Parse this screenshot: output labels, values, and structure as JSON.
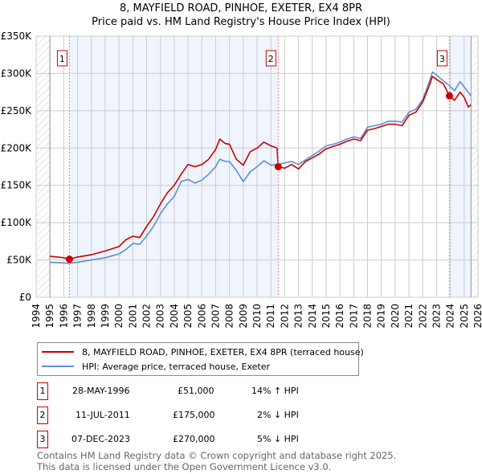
{
  "chart_data": {
    "type": "line",
    "title": "8, MAYFIELD ROAD, PINHOE, EXETER, EX4 8PR",
    "subtitle": "Price paid vs. HM Land Registry's House Price Index (HPI)",
    "xlim": [
      1994,
      2026
    ],
    "ylim": [
      0,
      350000
    ],
    "y_ticks": [
      {
        "v": 0,
        "label": "£0"
      },
      {
        "v": 50000,
        "label": "£50K"
      },
      {
        "v": 100000,
        "label": "£100K"
      },
      {
        "v": 150000,
        "label": "£150K"
      },
      {
        "v": 200000,
        "label": "£200K"
      },
      {
        "v": 250000,
        "label": "£250K"
      },
      {
        "v": 300000,
        "label": "£300K"
      },
      {
        "v": 350000,
        "label": "£350K"
      }
    ],
    "x_ticks": [
      "1994",
      "1995",
      "1996",
      "1997",
      "1998",
      "1999",
      "2000",
      "2001",
      "2002",
      "2003",
      "2004",
      "2005",
      "2006",
      "2007",
      "2008",
      "2009",
      "2010",
      "2011",
      "2012",
      "2013",
      "2014",
      "2015",
      "2016",
      "2017",
      "2018",
      "2019",
      "2020",
      "2021",
      "2022",
      "2023",
      "2024",
      "2025",
      "2026"
    ],
    "grid": true,
    "series": [
      {
        "name": "8, MAYFIELD ROAD, PINHOE, EXETER, EX4 8PR (terraced house)",
        "color": "#cc0000",
        "x": [
          1995,
          1996,
          1996.41,
          1997,
          1998,
          1999,
          2000,
          2000.5,
          2001,
          2001.5,
          2002,
          2002.5,
          2003,
          2003.5,
          2004,
          2004.5,
          2005,
          2005.5,
          2006,
          2006.5,
          2007,
          2007.3,
          2007.7,
          2008,
          2008.5,
          2009,
          2009.5,
          2010,
          2010.5,
          2011,
          2011.45,
          2011.53,
          2012,
          2012.5,
          2013,
          2013.5,
          2014,
          2014.5,
          2015,
          2015.5,
          2016,
          2016.5,
          2017,
          2017.5,
          2018,
          2018.5,
          2019,
          2019.5,
          2020,
          2020.5,
          2021,
          2021.5,
          2022,
          2022.5,
          2022.7,
          2023,
          2023.5,
          2023.93,
          2024.3,
          2024.7,
          2025,
          2025.3,
          2025.5
        ],
        "y": [
          55000,
          53000,
          51000,
          54000,
          57000,
          62000,
          68000,
          77000,
          82000,
          80000,
          95000,
          108000,
          125000,
          140000,
          150000,
          165000,
          178000,
          175000,
          178000,
          185000,
          198000,
          212000,
          206000,
          205000,
          185000,
          177000,
          195000,
          200000,
          208000,
          203000,
          200000,
          175000,
          173000,
          178000,
          172000,
          182000,
          187000,
          192000,
          199000,
          202000,
          205000,
          209000,
          212000,
          210000,
          224000,
          226000,
          229000,
          232000,
          232000,
          230000,
          244000,
          248000,
          262000,
          285000,
          296000,
          292000,
          286000,
          270000,
          264000,
          275000,
          268000,
          255000,
          258000
        ]
      },
      {
        "name": "HPI: Average price, terraced house, Exeter",
        "color": "#5b8fd6",
        "x": [
          1995,
          1996,
          1996.4,
          1997,
          1998,
          1999,
          2000,
          2000.5,
          2001,
          2001.5,
          2002,
          2002.5,
          2003,
          2003.5,
          2004,
          2004.5,
          2005,
          2005.5,
          2006,
          2006.5,
          2007,
          2007.3,
          2007.7,
          2008,
          2008.5,
          2009,
          2009.5,
          2010,
          2010.5,
          2011,
          2011.5,
          2012,
          2012.5,
          2013,
          2013.5,
          2014,
          2014.5,
          2015,
          2015.5,
          2016,
          2016.5,
          2017,
          2017.5,
          2018,
          2018.5,
          2019,
          2019.5,
          2020,
          2020.5,
          2021,
          2021.5,
          2022,
          2022.5,
          2022.7,
          2023,
          2023.5,
          2023.9,
          2024.3,
          2024.7,
          2025,
          2025.5
        ],
        "y": [
          47000,
          46000,
          45500,
          47000,
          50000,
          53000,
          58000,
          64000,
          72000,
          71000,
          82000,
          95000,
          112000,
          125000,
          135000,
          155000,
          158000,
          153000,
          157000,
          165000,
          175000,
          185000,
          182000,
          182000,
          170000,
          155000,
          168000,
          175000,
          183000,
          177000,
          178000,
          180000,
          182000,
          178000,
          184000,
          190000,
          196000,
          203000,
          205000,
          208000,
          212000,
          215000,
          213000,
          228000,
          230000,
          232000,
          236000,
          236000,
          235000,
          248000,
          252000,
          265000,
          290000,
          302000,
          298000,
          290000,
          284000,
          277000,
          289000,
          282000,
          270000
        ]
      }
    ],
    "sales": [
      {
        "id": "1",
        "x": 1996.41,
        "price": 51000,
        "date": "28-MAY-1996",
        "price_label": "£51,000",
        "hpi": "14% ↑ HPI"
      },
      {
        "id": "2",
        "x": 2011.53,
        "price": 175000,
        "date": "11-JUL-2011",
        "price_label": "£175,000",
        "hpi": "2% ↓ HPI"
      },
      {
        "id": "3",
        "x": 2023.93,
        "price": 270000,
        "date": "07-DEC-2023",
        "price_label": "£270,000",
        "hpi": "5% ↓ HPI"
      }
    ],
    "data_end": 2025.5
  },
  "footer": {
    "line1": "Contains HM Land Registry data © Crown copyright and database right 2025.",
    "line2": "This data is licensed under the Open Government Licence v3.0."
  }
}
